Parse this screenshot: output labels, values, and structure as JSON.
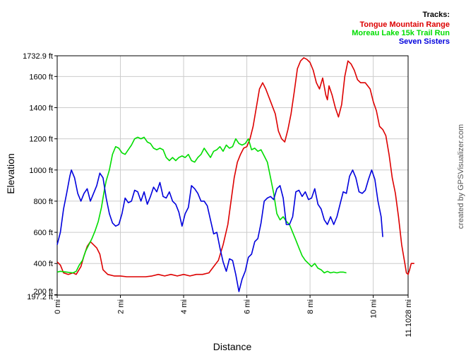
{
  "chart_data": {
    "type": "line",
    "xlabel": "Distance",
    "ylabel": "Elevation",
    "credit": "created by GPSVisualizer.com",
    "xlim": [
      0,
      11.1028
    ],
    "ylim": [
      197.2,
      1732.9
    ],
    "x_ticks": [
      {
        "value": 0,
        "label": "0 mi"
      },
      {
        "value": 2,
        "label": "2 mi"
      },
      {
        "value": 4,
        "label": "4 mi"
      },
      {
        "value": 6,
        "label": "6 mi"
      },
      {
        "value": 8,
        "label": "8 mi"
      },
      {
        "value": 10,
        "label": "10 mi"
      },
      {
        "value": 11.1028,
        "label": "11.1028 mi"
      }
    ],
    "y_ticks": [
      {
        "value": 197.2,
        "label": "197.2 ft"
      },
      {
        "value": 200,
        "label": "200 ft"
      },
      {
        "value": 400,
        "label": "400 ft"
      },
      {
        "value": 600,
        "label": "600 ft"
      },
      {
        "value": 800,
        "label": "800 ft"
      },
      {
        "value": 1000,
        "label": "1000 ft"
      },
      {
        "value": 1200,
        "label": "1200 ft"
      },
      {
        "value": 1400,
        "label": "1400 ft"
      },
      {
        "value": 1600,
        "label": "1600 ft"
      },
      {
        "value": 1732.9,
        "label": "1732.9 ft"
      }
    ],
    "grid": true,
    "legend_title": "Tracks:",
    "legend_position": "top-right",
    "series": [
      {
        "name": "Tongue Mountain Range",
        "color": "#dd0000",
        "points": [
          [
            0,
            410
          ],
          [
            0.1,
            390
          ],
          [
            0.2,
            340
          ],
          [
            0.35,
            330
          ],
          [
            0.5,
            340
          ],
          [
            0.6,
            330
          ],
          [
            0.75,
            380
          ],
          [
            0.85,
            450
          ],
          [
            0.95,
            510
          ],
          [
            1.05,
            540
          ],
          [
            1.15,
            520
          ],
          [
            1.25,
            500
          ],
          [
            1.35,
            460
          ],
          [
            1.45,
            360
          ],
          [
            1.6,
            330
          ],
          [
            1.8,
            320
          ],
          [
            2.0,
            320
          ],
          [
            2.2,
            315
          ],
          [
            2.4,
            315
          ],
          [
            2.6,
            315
          ],
          [
            2.8,
            315
          ],
          [
            3.0,
            320
          ],
          [
            3.2,
            330
          ],
          [
            3.4,
            320
          ],
          [
            3.6,
            330
          ],
          [
            3.8,
            320
          ],
          [
            4.0,
            330
          ],
          [
            4.2,
            320
          ],
          [
            4.4,
            330
          ],
          [
            4.6,
            330
          ],
          [
            4.8,
            340
          ],
          [
            4.95,
            380
          ],
          [
            5.1,
            420
          ],
          [
            5.25,
            520
          ],
          [
            5.4,
            650
          ],
          [
            5.5,
            800
          ],
          [
            5.6,
            950
          ],
          [
            5.7,
            1050
          ],
          [
            5.8,
            1100
          ],
          [
            5.9,
            1140
          ],
          [
            6.0,
            1150
          ],
          [
            6.1,
            1200
          ],
          [
            6.2,
            1280
          ],
          [
            6.3,
            1400
          ],
          [
            6.4,
            1520
          ],
          [
            6.5,
            1560
          ],
          [
            6.6,
            1520
          ],
          [
            6.75,
            1440
          ],
          [
            6.9,
            1360
          ],
          [
            7.0,
            1250
          ],
          [
            7.1,
            1200
          ],
          [
            7.2,
            1180
          ],
          [
            7.3,
            1260
          ],
          [
            7.4,
            1360
          ],
          [
            7.5,
            1500
          ],
          [
            7.6,
            1650
          ],
          [
            7.7,
            1700
          ],
          [
            7.8,
            1720
          ],
          [
            7.9,
            1710
          ],
          [
            8.0,
            1690
          ],
          [
            8.1,
            1640
          ],
          [
            8.2,
            1560
          ],
          [
            8.3,
            1520
          ],
          [
            8.4,
            1590
          ],
          [
            8.5,
            1480
          ],
          [
            8.55,
            1450
          ],
          [
            8.6,
            1540
          ],
          [
            8.7,
            1480
          ],
          [
            8.8,
            1400
          ],
          [
            8.9,
            1340
          ],
          [
            9.0,
            1420
          ],
          [
            9.1,
            1600
          ],
          [
            9.2,
            1700
          ],
          [
            9.3,
            1680
          ],
          [
            9.4,
            1640
          ],
          [
            9.5,
            1580
          ],
          [
            9.6,
            1560
          ],
          [
            9.75,
            1560
          ],
          [
            9.9,
            1520
          ],
          [
            10.0,
            1440
          ],
          [
            10.1,
            1380
          ],
          [
            10.2,
            1280
          ],
          [
            10.3,
            1260
          ],
          [
            10.4,
            1220
          ],
          [
            10.5,
            1100
          ],
          [
            10.6,
            950
          ],
          [
            10.7,
            850
          ],
          [
            10.8,
            700
          ],
          [
            10.9,
            520
          ],
          [
            11.0,
            400
          ],
          [
            11.05,
            340
          ],
          [
            11.1028,
            330
          ],
          [
            11.15,
            360
          ],
          [
            11.2,
            400
          ],
          [
            11.3,
            400
          ]
        ]
      },
      {
        "name": "Moreau Lake 15k Trail Run",
        "color": "#00dd00",
        "points": [
          [
            0,
            345
          ],
          [
            0.1,
            350
          ],
          [
            0.3,
            345
          ],
          [
            0.5,
            340
          ],
          [
            0.6,
            350
          ],
          [
            0.7,
            390
          ],
          [
            0.8,
            420
          ],
          [
            0.9,
            480
          ],
          [
            1.0,
            520
          ],
          [
            1.1,
            560
          ],
          [
            1.2,
            610
          ],
          [
            1.3,
            670
          ],
          [
            1.4,
            760
          ],
          [
            1.5,
            880
          ],
          [
            1.55,
            930
          ],
          [
            1.65,
            1000
          ],
          [
            1.75,
            1100
          ],
          [
            1.85,
            1150
          ],
          [
            1.95,
            1140
          ],
          [
            2.05,
            1110
          ],
          [
            2.15,
            1100
          ],
          [
            2.25,
            1130
          ],
          [
            2.35,
            1160
          ],
          [
            2.45,
            1200
          ],
          [
            2.55,
            1210
          ],
          [
            2.65,
            1200
          ],
          [
            2.75,
            1210
          ],
          [
            2.85,
            1180
          ],
          [
            2.95,
            1170
          ],
          [
            3.05,
            1140
          ],
          [
            3.15,
            1130
          ],
          [
            3.25,
            1140
          ],
          [
            3.35,
            1130
          ],
          [
            3.45,
            1080
          ],
          [
            3.55,
            1060
          ],
          [
            3.65,
            1080
          ],
          [
            3.75,
            1060
          ],
          [
            3.85,
            1080
          ],
          [
            3.95,
            1090
          ],
          [
            4.05,
            1080
          ],
          [
            4.15,
            1100
          ],
          [
            4.25,
            1060
          ],
          [
            4.35,
            1050
          ],
          [
            4.45,
            1080
          ],
          [
            4.55,
            1100
          ],
          [
            4.65,
            1140
          ],
          [
            4.75,
            1110
          ],
          [
            4.85,
            1080
          ],
          [
            4.95,
            1120
          ],
          [
            5.05,
            1130
          ],
          [
            5.15,
            1150
          ],
          [
            5.25,
            1120
          ],
          [
            5.35,
            1160
          ],
          [
            5.45,
            1140
          ],
          [
            5.55,
            1150
          ],
          [
            5.65,
            1200
          ],
          [
            5.75,
            1170
          ],
          [
            5.85,
            1160
          ],
          [
            5.95,
            1170
          ],
          [
            6.05,
            1200
          ],
          [
            6.15,
            1130
          ],
          [
            6.25,
            1140
          ],
          [
            6.35,
            1120
          ],
          [
            6.45,
            1130
          ],
          [
            6.55,
            1090
          ],
          [
            6.65,
            1050
          ],
          [
            6.75,
            950
          ],
          [
            6.85,
            850
          ],
          [
            6.95,
            720
          ],
          [
            7.05,
            680
          ],
          [
            7.15,
            700
          ],
          [
            7.25,
            670
          ],
          [
            7.35,
            650
          ],
          [
            7.45,
            600
          ],
          [
            7.55,
            550
          ],
          [
            7.65,
            500
          ],
          [
            7.75,
            450
          ],
          [
            7.85,
            420
          ],
          [
            7.95,
            400
          ],
          [
            8.05,
            380
          ],
          [
            8.15,
            400
          ],
          [
            8.25,
            370
          ],
          [
            8.35,
            360
          ],
          [
            8.45,
            340
          ],
          [
            8.55,
            350
          ],
          [
            8.65,
            340
          ],
          [
            8.75,
            345
          ],
          [
            8.85,
            340
          ],
          [
            8.95,
            345
          ],
          [
            9.05,
            345
          ],
          [
            9.15,
            340
          ]
        ]
      },
      {
        "name": "Seven Sisters",
        "color": "#0000dd",
        "points": [
          [
            0,
            520
          ],
          [
            0.1,
            600
          ],
          [
            0.2,
            750
          ],
          [
            0.3,
            850
          ],
          [
            0.4,
            960
          ],
          [
            0.45,
            1000
          ],
          [
            0.55,
            950
          ],
          [
            0.65,
            850
          ],
          [
            0.75,
            800
          ],
          [
            0.85,
            850
          ],
          [
            0.95,
            880
          ],
          [
            1.05,
            800
          ],
          [
            1.15,
            850
          ],
          [
            1.25,
            900
          ],
          [
            1.35,
            980
          ],
          [
            1.45,
            950
          ],
          [
            1.55,
            820
          ],
          [
            1.65,
            720
          ],
          [
            1.75,
            660
          ],
          [
            1.85,
            640
          ],
          [
            1.95,
            650
          ],
          [
            2.05,
            720
          ],
          [
            2.15,
            820
          ],
          [
            2.25,
            790
          ],
          [
            2.35,
            800
          ],
          [
            2.45,
            870
          ],
          [
            2.55,
            860
          ],
          [
            2.65,
            800
          ],
          [
            2.75,
            860
          ],
          [
            2.85,
            780
          ],
          [
            2.95,
            830
          ],
          [
            3.05,
            890
          ],
          [
            3.15,
            860
          ],
          [
            3.25,
            920
          ],
          [
            3.35,
            830
          ],
          [
            3.45,
            820
          ],
          [
            3.55,
            860
          ],
          [
            3.65,
            800
          ],
          [
            3.75,
            780
          ],
          [
            3.85,
            730
          ],
          [
            3.95,
            640
          ],
          [
            4.05,
            720
          ],
          [
            4.15,
            760
          ],
          [
            4.25,
            900
          ],
          [
            4.35,
            880
          ],
          [
            4.45,
            850
          ],
          [
            4.55,
            800
          ],
          [
            4.65,
            800
          ],
          [
            4.75,
            770
          ],
          [
            4.85,
            680
          ],
          [
            4.95,
            590
          ],
          [
            5.05,
            600
          ],
          [
            5.15,
            500
          ],
          [
            5.25,
            410
          ],
          [
            5.35,
            350
          ],
          [
            5.45,
            430
          ],
          [
            5.55,
            420
          ],
          [
            5.65,
            330
          ],
          [
            5.75,
            220
          ],
          [
            5.85,
            300
          ],
          [
            5.95,
            350
          ],
          [
            6.05,
            440
          ],
          [
            6.15,
            460
          ],
          [
            6.25,
            540
          ],
          [
            6.35,
            560
          ],
          [
            6.45,
            660
          ],
          [
            6.55,
            800
          ],
          [
            6.65,
            820
          ],
          [
            6.75,
            830
          ],
          [
            6.85,
            810
          ],
          [
            6.95,
            880
          ],
          [
            7.05,
            900
          ],
          [
            7.15,
            820
          ],
          [
            7.25,
            650
          ],
          [
            7.35,
            650
          ],
          [
            7.45,
            700
          ],
          [
            7.55,
            860
          ],
          [
            7.65,
            870
          ],
          [
            7.75,
            830
          ],
          [
            7.85,
            860
          ],
          [
            7.95,
            810
          ],
          [
            8.05,
            820
          ],
          [
            8.15,
            880
          ],
          [
            8.25,
            780
          ],
          [
            8.35,
            750
          ],
          [
            8.45,
            680
          ],
          [
            8.55,
            650
          ],
          [
            8.65,
            700
          ],
          [
            8.75,
            650
          ],
          [
            8.85,
            700
          ],
          [
            8.95,
            780
          ],
          [
            9.05,
            860
          ],
          [
            9.15,
            850
          ],
          [
            9.25,
            960
          ],
          [
            9.35,
            1000
          ],
          [
            9.45,
            950
          ],
          [
            9.55,
            860
          ],
          [
            9.65,
            850
          ],
          [
            9.75,
            870
          ],
          [
            9.85,
            940
          ],
          [
            9.95,
            1000
          ],
          [
            10.05,
            940
          ],
          [
            10.15,
            800
          ],
          [
            10.25,
            700
          ],
          [
            10.3,
            570
          ]
        ]
      }
    ]
  }
}
